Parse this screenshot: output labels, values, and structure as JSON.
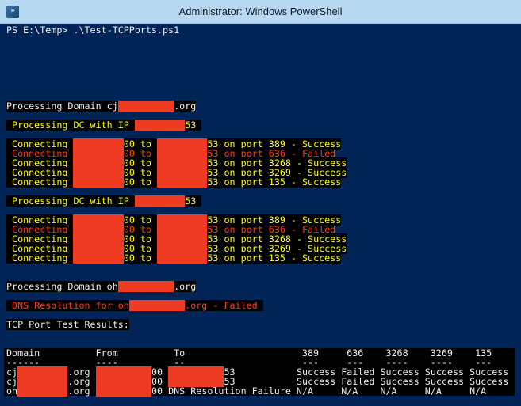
{
  "window": {
    "title": "Administrator: Windows PowerShell",
    "icon": "powershell-icon"
  },
  "colors": {
    "title_bar": "#b7d8f1",
    "console_bg": "#012456",
    "text_default": "#eeedf0",
    "text_yellow": "#ffff00",
    "text_red": "#ff3a1e",
    "highlight_bg": "#000000",
    "redaction": "#ef3b23"
  },
  "console": {
    "lines": [
      {
        "name": "prompt-line",
        "style": "plain",
        "segments": [
          {
            "text": "PS E:\\Temp> .\\Test-TCPPorts.ps1"
          }
        ]
      },
      {},
      {},
      {},
      {},
      {},
      {},
      {},
      {
        "name": "processing-domain-line",
        "style": "white",
        "segments": [
          {
            "text": "Processing Domain cj"
          },
          {
            "redact": 10
          },
          {
            "text": ".org"
          }
        ]
      },
      {},
      {
        "name": "processing-dc-line",
        "style": "yellow",
        "segments": [
          {
            "text": " Processing DC with IP "
          },
          {
            "redact": 9
          },
          {
            "text": "53 "
          }
        ]
      },
      {},
      {
        "name": "connecting-line",
        "style": "yellow",
        "segments": [
          {
            "text": " Connecting "
          },
          {
            "redact": 9
          },
          {
            "text": "00 to "
          },
          {
            "redact": 9
          },
          {
            "text": "53 on port 389 - Success"
          }
        ]
      },
      {
        "name": "connecting-line",
        "style": "red",
        "segments": [
          {
            "text": " Connecting "
          },
          {
            "redact": 9
          },
          {
            "text": "00 to "
          },
          {
            "redact": 9
          },
          {
            "text": "53 on port 636 - Failed"
          }
        ]
      },
      {
        "name": "connecting-line",
        "style": "yellow",
        "segments": [
          {
            "text": " Connecting "
          },
          {
            "redact": 9
          },
          {
            "text": "00 to "
          },
          {
            "redact": 9
          },
          {
            "text": "53 on port 3268 - Success"
          }
        ]
      },
      {
        "name": "connecting-line",
        "style": "yellow",
        "segments": [
          {
            "text": " Connecting "
          },
          {
            "redact": 9
          },
          {
            "text": "00 to "
          },
          {
            "redact": 9
          },
          {
            "text": "53 on port 3269 - Success"
          }
        ]
      },
      {
        "name": "connecting-line",
        "style": "yellow",
        "segments": [
          {
            "text": " Connecting "
          },
          {
            "redact": 9
          },
          {
            "text": "00 to "
          },
          {
            "redact": 9
          },
          {
            "text": "53 on port 135 - Success"
          }
        ]
      },
      {},
      {
        "name": "processing-dc-line",
        "style": "yellow",
        "segments": [
          {
            "text": " Processing DC with IP "
          },
          {
            "redact": 9
          },
          {
            "text": "53 "
          }
        ]
      },
      {},
      {
        "name": "connecting-line",
        "style": "yellow",
        "segments": [
          {
            "text": " Connecting "
          },
          {
            "redact": 9
          },
          {
            "text": "00 to "
          },
          {
            "redact": 9
          },
          {
            "text": "53 on port 389 - Success"
          }
        ]
      },
      {
        "name": "connecting-line",
        "style": "red",
        "segments": [
          {
            "text": " Connecting "
          },
          {
            "redact": 9
          },
          {
            "text": "00 to "
          },
          {
            "redact": 9
          },
          {
            "text": "53 on port 636 - Failed"
          }
        ]
      },
      {
        "name": "connecting-line",
        "style": "yellow",
        "segments": [
          {
            "text": " Connecting "
          },
          {
            "redact": 9
          },
          {
            "text": "00 to "
          },
          {
            "redact": 9
          },
          {
            "text": "53 on port 3268 - Success"
          }
        ]
      },
      {
        "name": "connecting-line",
        "style": "yellow",
        "segments": [
          {
            "text": " Connecting "
          },
          {
            "redact": 9
          },
          {
            "text": "00 to "
          },
          {
            "redact": 9
          },
          {
            "text": "53 on port 3269 - Success"
          }
        ]
      },
      {
        "name": "connecting-line",
        "style": "yellow",
        "segments": [
          {
            "text": " Connecting "
          },
          {
            "redact": 9
          },
          {
            "text": "00 to "
          },
          {
            "redact": 9
          },
          {
            "text": "53 on port 135 - Success"
          }
        ]
      },
      {},
      {},
      {
        "name": "processing-domain-line",
        "style": "white",
        "segments": [
          {
            "text": "Processing Domain oh"
          },
          {
            "redact": 10
          },
          {
            "text": ".org"
          }
        ]
      },
      {},
      {
        "name": "dns-failed-line",
        "style": "red",
        "segments": [
          {
            "text": " DNS Resolution for oh"
          },
          {
            "redact": 10
          },
          {
            "text": ".org - Failed "
          }
        ]
      },
      {},
      {
        "name": "results-title-line",
        "style": "white",
        "segments": [
          {
            "text": "TCP Port Test Results:"
          }
        ]
      },
      {},
      {},
      {
        "name": "table-header-line",
        "style": "table",
        "segments": [
          {
            "text": "Domain          From          To                     389     636    3268    3269    135"
          }
        ]
      },
      {
        "name": "table-divider-line",
        "style": "table",
        "segments": [
          {
            "text": "------          ----          --                     ---     ---    ----    ----    ---"
          }
        ]
      },
      {
        "name": "table-row-line",
        "style": "table",
        "segments": [
          {
            "text": "cj"
          },
          {
            "redact": 9
          },
          {
            "text": ".org "
          },
          {
            "redact": 10
          },
          {
            "text": "00 "
          },
          {
            "redact": 10
          },
          {
            "text": "53           Success Failed Success Success Success"
          }
        ]
      },
      {
        "name": "table-row-line",
        "style": "table",
        "segments": [
          {
            "text": "cj"
          },
          {
            "redact": 9
          },
          {
            "text": ".org "
          },
          {
            "redact": 10
          },
          {
            "text": "00 "
          },
          {
            "redact": 10
          },
          {
            "text": "53           Success Failed Success Success Success"
          }
        ]
      },
      {
        "name": "table-row-line",
        "style": "table",
        "segments": [
          {
            "text": "oh"
          },
          {
            "redact": 9
          },
          {
            "text": ".org "
          },
          {
            "redact": 10
          },
          {
            "text": "00 DNS Resolution Failure N/A     N/A    N/A     N/A     N/A"
          }
        ]
      }
    ]
  }
}
